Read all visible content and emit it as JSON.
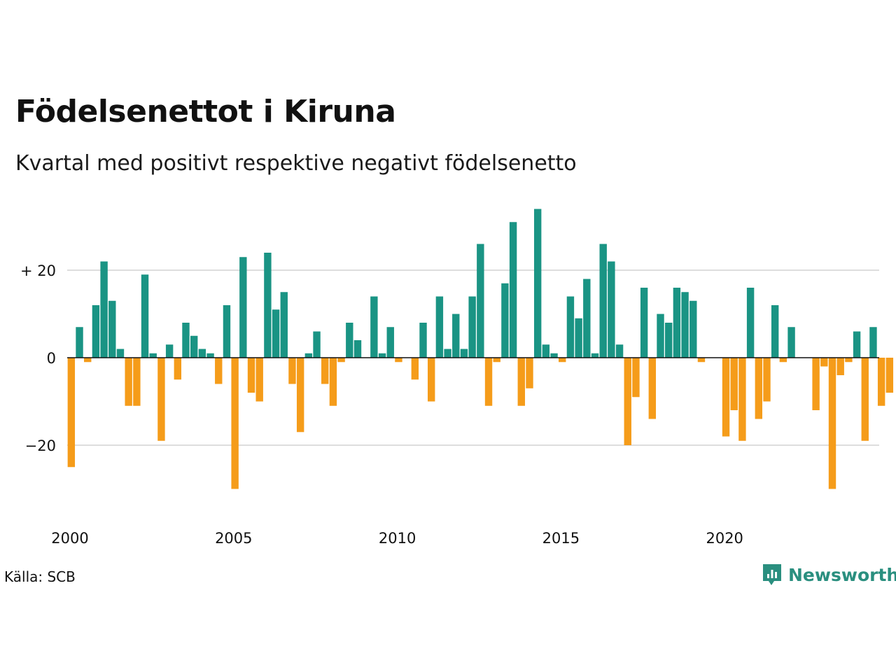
{
  "title": "Födelsenettot i Kiruna",
  "subtitle": "Kvartal med positivt respektive negativt födelsenetto",
  "source": "Källa: SCB",
  "brand": "Newsworthy",
  "colors": {
    "positive": "#1a9484",
    "negative": "#f59c1a",
    "grid": "#dddddd",
    "brand": "#2a8f7f"
  },
  "chart_data": {
    "type": "bar",
    "x_start": "2000 Q1",
    "ylim": [
      -36,
      36
    ],
    "y_ticks": [
      {
        "value": 20,
        "label": "+ 20"
      },
      {
        "value": 0,
        "label": "0"
      },
      {
        "value": -20,
        "label": "−20"
      }
    ],
    "x_ticks": [
      {
        "year": 2000,
        "label": "2000"
      },
      {
        "year": 2005,
        "label": "2005"
      },
      {
        "year": 2010,
        "label": "2010"
      },
      {
        "year": 2015,
        "label": "2015"
      },
      {
        "year": 2020,
        "label": "2020"
      }
    ],
    "values": [
      -25,
      7,
      -1,
      12,
      22,
      13,
      2,
      -11,
      -11,
      19,
      1,
      -19,
      3,
      -5,
      8,
      5,
      2,
      1,
      -6,
      12,
      -30,
      23,
      -8,
      -10,
      24,
      11,
      15,
      -6,
      -17,
      1,
      6,
      -6,
      -11,
      -1,
      8,
      4,
      0,
      14,
      1,
      7,
      -1,
      0,
      -5,
      8,
      -10,
      14,
      2,
      10,
      2,
      14,
      26,
      -11,
      -1,
      17,
      31,
      -11,
      -7,
      34,
      3,
      1,
      -1,
      14,
      9,
      18,
      1,
      26,
      22,
      3,
      -20,
      -9,
      16,
      -14,
      10,
      8,
      16,
      15,
      13,
      -1,
      0,
      0,
      -18,
      -12,
      -19,
      16,
      -14,
      -10,
      12,
      -1,
      7,
      0,
      0,
      -12,
      -2,
      -30,
      -4,
      -1,
      6,
      -19,
      7,
      -11,
      -8
    ]
  }
}
